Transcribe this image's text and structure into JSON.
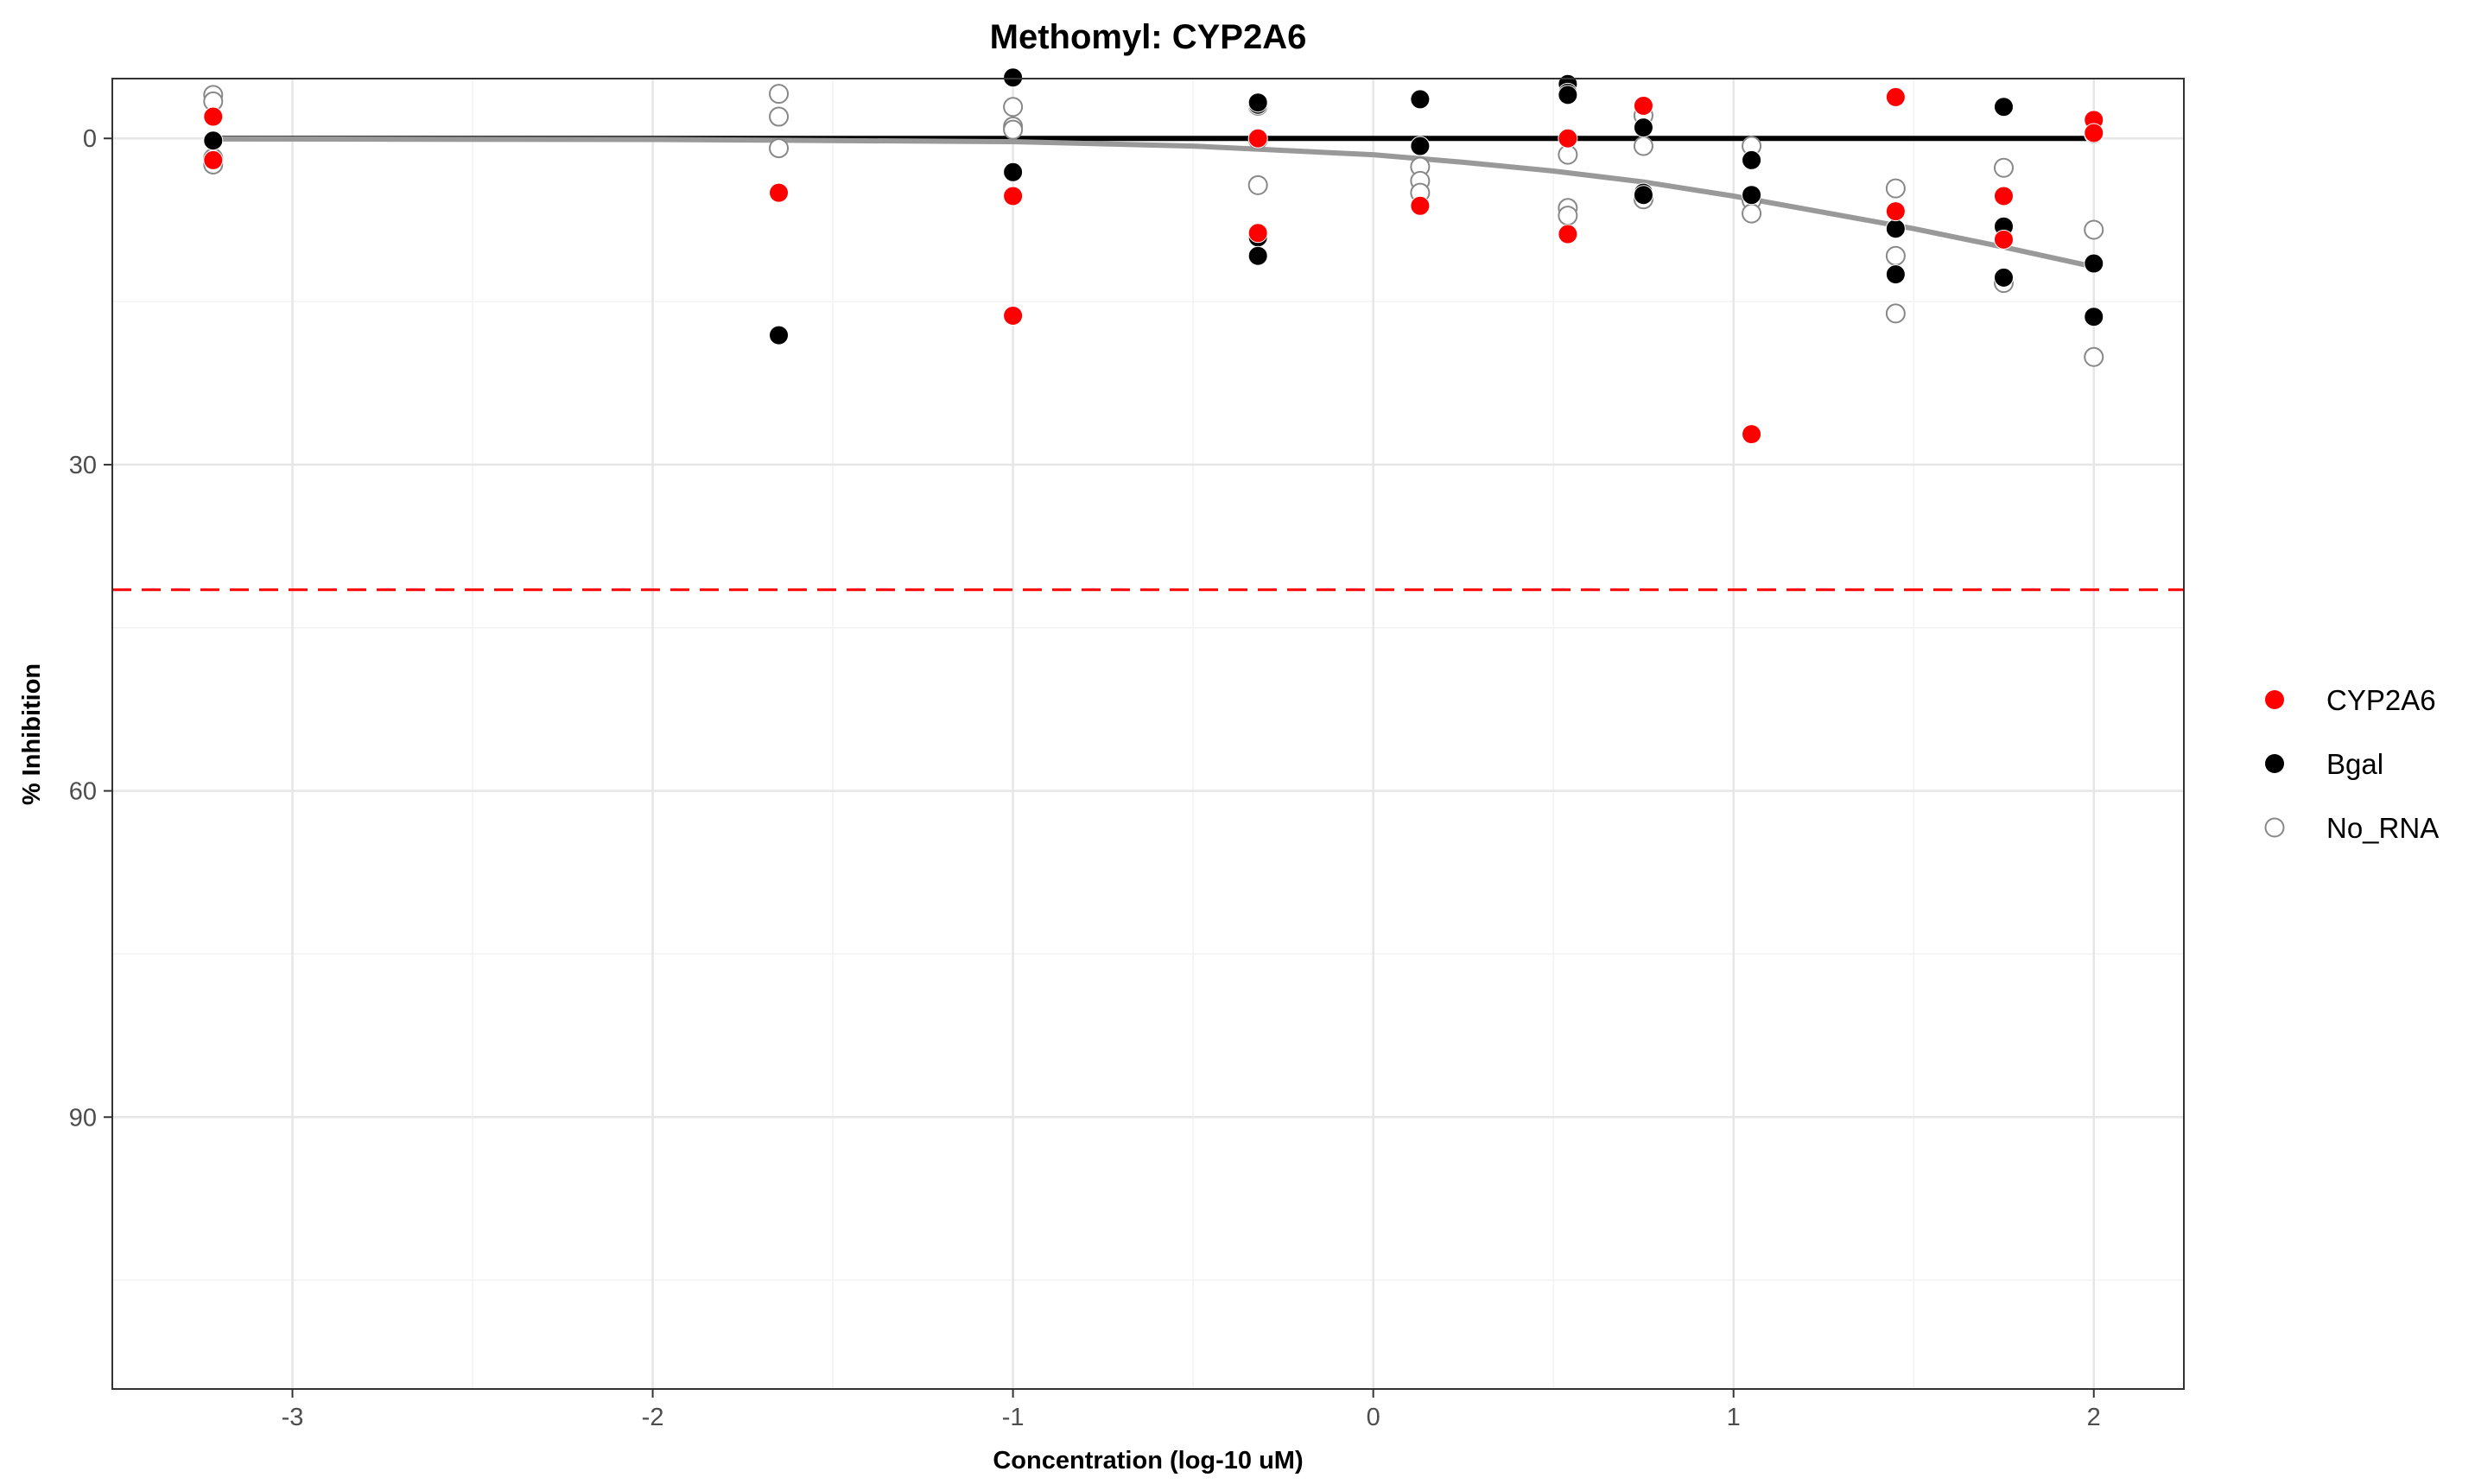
{
  "chart_data": {
    "type": "scatter",
    "title": "Methomyl: CYP2A6",
    "xlabel": "Concentration (log-10 uM)",
    "ylabel": "% Inhibition",
    "xlim": [
      -3.5,
      2.25
    ],
    "ylim": [
      115,
      -5.5
    ],
    "y_reversed": true,
    "x_ticks": [
      -3,
      -2,
      -1,
      0,
      1,
      2
    ],
    "x_tick_labels": [
      "-3",
      "-2",
      "-1",
      "0",
      "1",
      "2"
    ],
    "y_ticks": [
      0,
      30,
      60,
      90
    ],
    "y_tick_labels": [
      "0",
      "30",
      "60",
      "90"
    ],
    "x_minor_ticks": [
      -2.5,
      -1.5,
      -0.5,
      0.5,
      1.5
    ],
    "y_minor_ticks": [
      15,
      45,
      75,
      105
    ],
    "grid": true,
    "threshold": {
      "y": 41.5,
      "color": "#ff0000",
      "style": "dashed"
    },
    "legend_position": "right",
    "series": [
      {
        "name": "CYP2A6",
        "color": "#ff0000",
        "marker": "filled",
        "points": [
          [
            -3.22,
            -2
          ],
          [
            -3.22,
            2
          ],
          [
            -1.65,
            5
          ],
          [
            -1.0,
            5.3
          ],
          [
            -1.0,
            16.3
          ],
          [
            -0.32,
            0
          ],
          [
            -0.32,
            8.7
          ],
          [
            0.13,
            6.2
          ],
          [
            0.54,
            0
          ],
          [
            0.54,
            8.8
          ],
          [
            0.75,
            -3
          ],
          [
            1.05,
            27.2
          ],
          [
            1.45,
            -3.8
          ],
          [
            1.45,
            6.7
          ],
          [
            1.75,
            5.3
          ],
          [
            1.75,
            9.3
          ],
          [
            2.0,
            -1.7
          ],
          [
            2.0,
            -0.5
          ]
        ]
      },
      {
        "name": "Bgal",
        "color": "#000000",
        "marker": "filled",
        "points": [
          [
            -3.22,
            0.2
          ],
          [
            -1.65,
            18.1
          ],
          [
            -1.0,
            -5.6
          ],
          [
            -1.0,
            3.1
          ],
          [
            -0.32,
            -3.1
          ],
          [
            -0.32,
            -3.3
          ],
          [
            -0.32,
            9.1
          ],
          [
            -0.32,
            10.8
          ],
          [
            0.13,
            -3.6
          ],
          [
            0.13,
            0.7
          ],
          [
            0.54,
            -5
          ],
          [
            0.54,
            -4.2
          ],
          [
            0.54,
            -4
          ],
          [
            0.75,
            -1
          ],
          [
            0.75,
            5
          ],
          [
            0.75,
            5.2
          ],
          [
            1.05,
            2
          ],
          [
            1.05,
            5.2
          ],
          [
            1.45,
            8.3
          ],
          [
            1.45,
            12.5
          ],
          [
            1.75,
            -2.9
          ],
          [
            1.75,
            8.1
          ],
          [
            1.75,
            12.8
          ],
          [
            2.0,
            -0.4
          ],
          [
            2.0,
            11.5
          ],
          [
            2.0,
            16.4
          ]
        ]
      },
      {
        "name": "No_RNA",
        "color": "#888888",
        "marker": "hollow",
        "points": [
          [
            -3.22,
            -4
          ],
          [
            -3.22,
            -3.4
          ],
          [
            -3.22,
            1.8
          ],
          [
            -3.22,
            2.4
          ],
          [
            -1.65,
            -4.1
          ],
          [
            -1.65,
            -2
          ],
          [
            -1.65,
            0.9
          ],
          [
            -1.0,
            -2.9
          ],
          [
            -1.0,
            -1.1
          ],
          [
            -1.0,
            -0.8
          ],
          [
            -0.32,
            -3
          ],
          [
            -0.32,
            0.1
          ],
          [
            -0.32,
            4.3
          ],
          [
            0.13,
            2.6
          ],
          [
            0.13,
            3.9
          ],
          [
            0.13,
            5
          ],
          [
            0.54,
            1.5
          ],
          [
            0.54,
            6.4
          ],
          [
            0.54,
            7.1
          ],
          [
            0.75,
            -2.1
          ],
          [
            0.75,
            0.7
          ],
          [
            0.75,
            5.6
          ],
          [
            1.05,
            0.7
          ],
          [
            1.05,
            5.7
          ],
          [
            1.05,
            6.9
          ],
          [
            1.45,
            4.6
          ],
          [
            1.45,
            10.8
          ],
          [
            1.45,
            16.1
          ],
          [
            1.75,
            2.7
          ],
          [
            1.75,
            13.3
          ],
          [
            2.0,
            8.4
          ],
          [
            2.0,
            20.1
          ]
        ]
      }
    ],
    "fit_lines": [
      {
        "name": "Bgal fit",
        "color": "#000000",
        "points": [
          [
            -3.22,
            0
          ],
          [
            2.0,
            0
          ]
        ]
      },
      {
        "name": "No_RNA fit",
        "color": "#999999",
        "points": [
          [
            -3.22,
            0.05
          ],
          [
            -2.0,
            0.1
          ],
          [
            -1.0,
            0.3
          ],
          [
            -0.5,
            0.7
          ],
          [
            0.0,
            1.5
          ],
          [
            0.25,
            2.2
          ],
          [
            0.5,
            3.0
          ],
          [
            0.75,
            4.0
          ],
          [
            1.0,
            5.3
          ],
          [
            1.25,
            6.8
          ],
          [
            1.5,
            8.3
          ],
          [
            1.75,
            10.0
          ],
          [
            2.0,
            11.8
          ]
        ]
      }
    ]
  }
}
